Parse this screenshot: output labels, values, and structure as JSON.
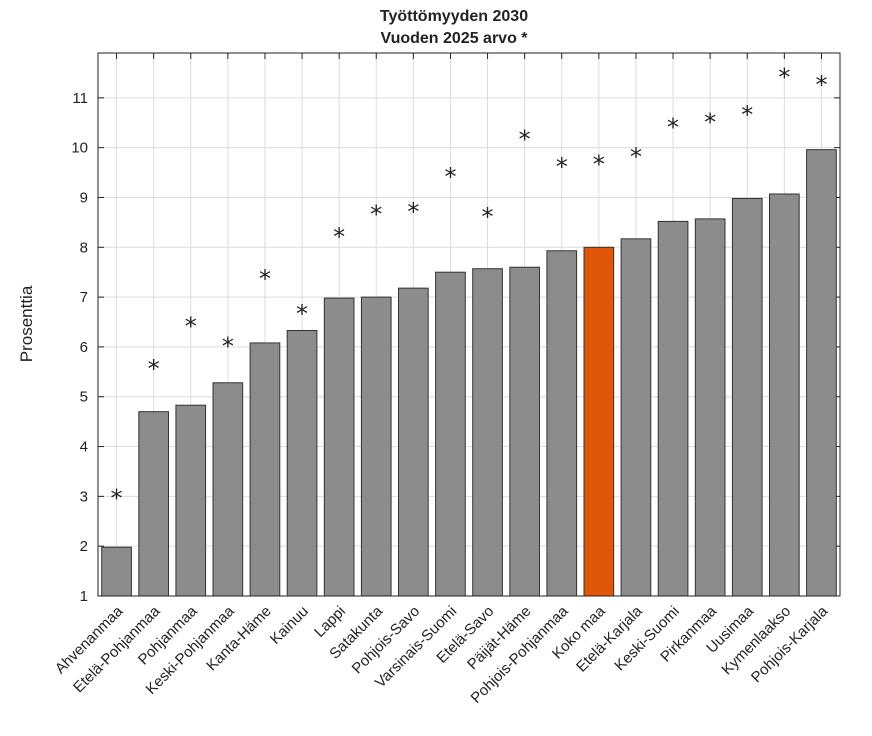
{
  "chart_data": {
    "type": "bar",
    "title": "Työttömyyden 2030",
    "subtitle": "Vuoden 2025 arvo *",
    "ylabel": "Prosenttia",
    "xlabel": "",
    "ylim": [
      1,
      11.9
    ],
    "yticks": [
      1,
      2,
      3,
      4,
      5,
      6,
      7,
      8,
      9,
      10,
      11
    ],
    "grid": true,
    "colors": {
      "bar": "#8c8c8c",
      "highlight": "#e0570b",
      "edge": "#333333",
      "grid": "#dcdcdc"
    },
    "highlight_category": "Koko maa",
    "marker_symbol": "*",
    "categories": [
      "Ahvenanmaa",
      "Etelä-Pohjanmaa",
      "Pohjanmaa",
      "Keski-Pohjanmaa",
      "Kanta-Häme",
      "Kainuu",
      "Lappi",
      "Satakunta",
      "Pohjois-Savo",
      "Varsinais-Suomi",
      "Etelä-Savo",
      "Päijät-Häme",
      "Pohjois-Pohjanmaa",
      "Koko maa",
      "Etelä-Karjala",
      "Keski-Suomi",
      "Pirkanmaa",
      "Uusimaa",
      "Kymenlaakso",
      "Pohjois-Karjala"
    ],
    "series": [
      {
        "name": "2030",
        "values": [
          1.98,
          4.7,
          4.83,
          5.28,
          6.08,
          6.33,
          6.98,
          7.0,
          7.18,
          7.5,
          7.57,
          7.6,
          7.93,
          8.0,
          8.17,
          8.52,
          8.57,
          8.98,
          9.07,
          9.96
        ]
      },
      {
        "name": "2025",
        "values": [
          3.1,
          5.7,
          6.55,
          6.15,
          7.5,
          6.8,
          8.35,
          8.8,
          8.85,
          9.55,
          8.75,
          10.3,
          9.75,
          9.8,
          9.95,
          10.55,
          10.65,
          10.8,
          11.55,
          11.4
        ]
      }
    ]
  }
}
